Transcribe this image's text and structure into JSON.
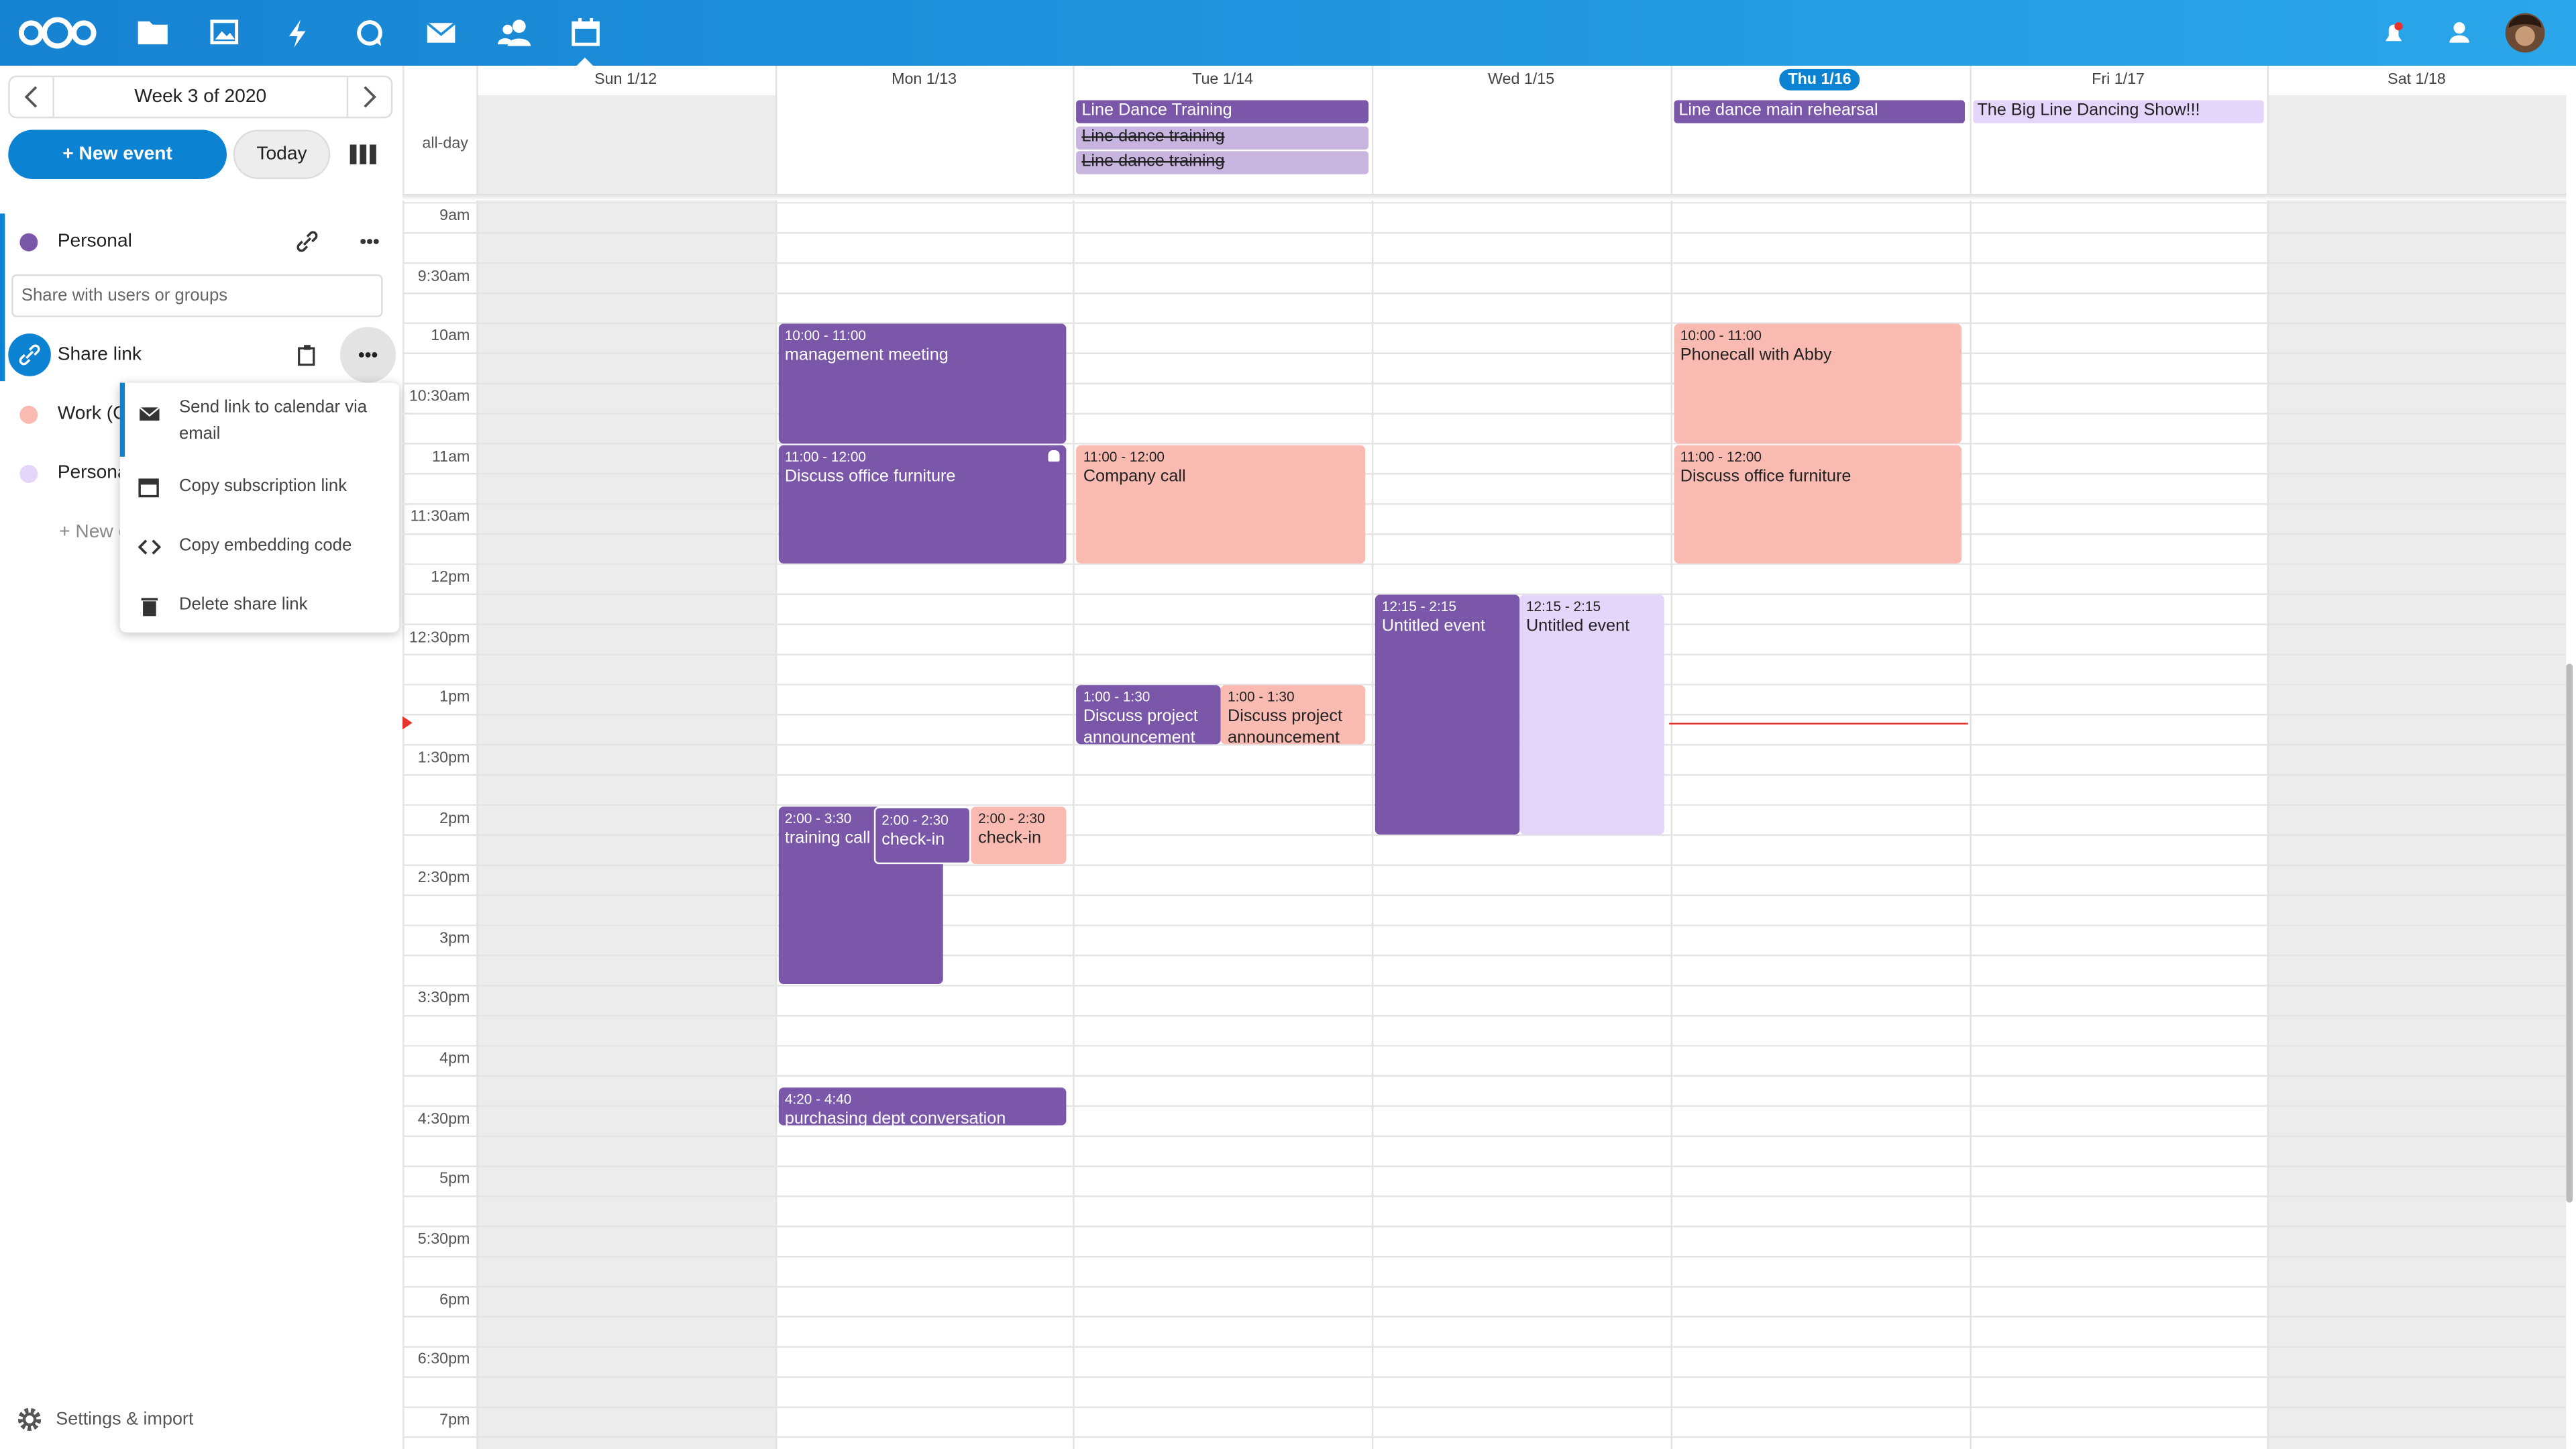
{
  "sidebar": {
    "week": "Week 3 of 2020",
    "new_event": "+ New event",
    "today": "Today",
    "calendars": [
      {
        "name": "Personal",
        "color": "#7b57aa"
      },
      {
        "name": "Work (C",
        "color": "#f9bab2"
      },
      {
        "name": "Persona",
        "color": "#e4d5fa"
      }
    ],
    "share_placeholder": "Share with users or groups",
    "share_link": "Share link",
    "menu": [
      "Send link to calendar via email",
      "Copy subscription link",
      "Copy embedding code",
      "Delete share link"
    ],
    "new_calendar": "+ New c",
    "settings": "Settings & import"
  },
  "calendar": {
    "allday_label": "all-day",
    "times": [
      "9am",
      "9:30am",
      "10am",
      "10:30am",
      "11am",
      "11:30am",
      "12pm",
      "12:30pm",
      "1pm",
      "1:30pm",
      "2pm",
      "2:30pm",
      "3pm",
      "3:30pm",
      "4pm",
      "4:30pm",
      "5pm",
      "5:30pm",
      "6pm",
      "6:30pm",
      "7pm"
    ],
    "columns": [
      {
        "label": "Sun 1/12",
        "weekend": true,
        "allday": [],
        "events": []
      },
      {
        "label": "Mon 1/13",
        "allday": [],
        "events": [
          {
            "time": "10:00 - 11:00",
            "title": "management meeting",
            "color": "#7b57aa"
          },
          {
            "time": "11:00 - 12:00",
            "title": "Discuss office furniture",
            "color": "#7b57aa",
            "reminder": true
          },
          {
            "time": "2:00 - 3:30",
            "title": "training call",
            "color": "#7b57aa"
          },
          {
            "time": "2:00 - 2:30",
            "title": "check-in",
            "color": "#7b57aa"
          },
          {
            "time": "2:00 - 2:30",
            "title": "check-in",
            "color": "#f9bab2"
          },
          {
            "time": "4:20 - 4:40",
            "title": "purchasing dept conversation",
            "color": "#7b57aa"
          }
        ]
      },
      {
        "label": "Tue 1/14",
        "allday": [
          {
            "title": "Line Dance Training",
            "color": "#7b57aa"
          },
          {
            "title": "Line dance training",
            "color": "#c7b5e0",
            "cancelled": true
          },
          {
            "title": "Line dance training",
            "color": "#c7b5e0",
            "cancelled": true
          }
        ],
        "events": [
          {
            "time": "11:00 - 12:00",
            "title": "Company call",
            "color": "#f9bab2"
          },
          {
            "time": "1:00 - 1:30",
            "title": "Discuss project announcement",
            "color": "#7b57aa"
          },
          {
            "time": "1:00 - 1:30",
            "title": "Discuss project announcement",
            "color": "#f9bab2"
          }
        ]
      },
      {
        "label": "Wed 1/15",
        "allday": [],
        "events": [
          {
            "time": "12:15 - 2:15",
            "title": "Untitled event",
            "color": "#7b57aa"
          },
          {
            "time": "12:15 - 2:15",
            "title": "Untitled event",
            "color": "#e4d5fa"
          }
        ]
      },
      {
        "label": "Thu 1/16",
        "today": true,
        "allday": [
          {
            "title": "Line dance main rehearsal",
            "color": "#7b57aa"
          }
        ],
        "events": [
          {
            "time": "10:00 - 11:00",
            "title": "Phonecall with Abby",
            "color": "#f9bab2"
          },
          {
            "time": "11:00 - 12:00",
            "title": "Discuss office furniture",
            "color": "#f9bab2"
          }
        ]
      },
      {
        "label": "Fri 1/17",
        "allday": [
          {
            "title": "The Big Line Dancing Show!!!",
            "color": "#e4d5fa"
          }
        ],
        "events": []
      },
      {
        "label": "Sat 1/18",
        "weekend": true,
        "allday": [],
        "events": []
      }
    ]
  }
}
